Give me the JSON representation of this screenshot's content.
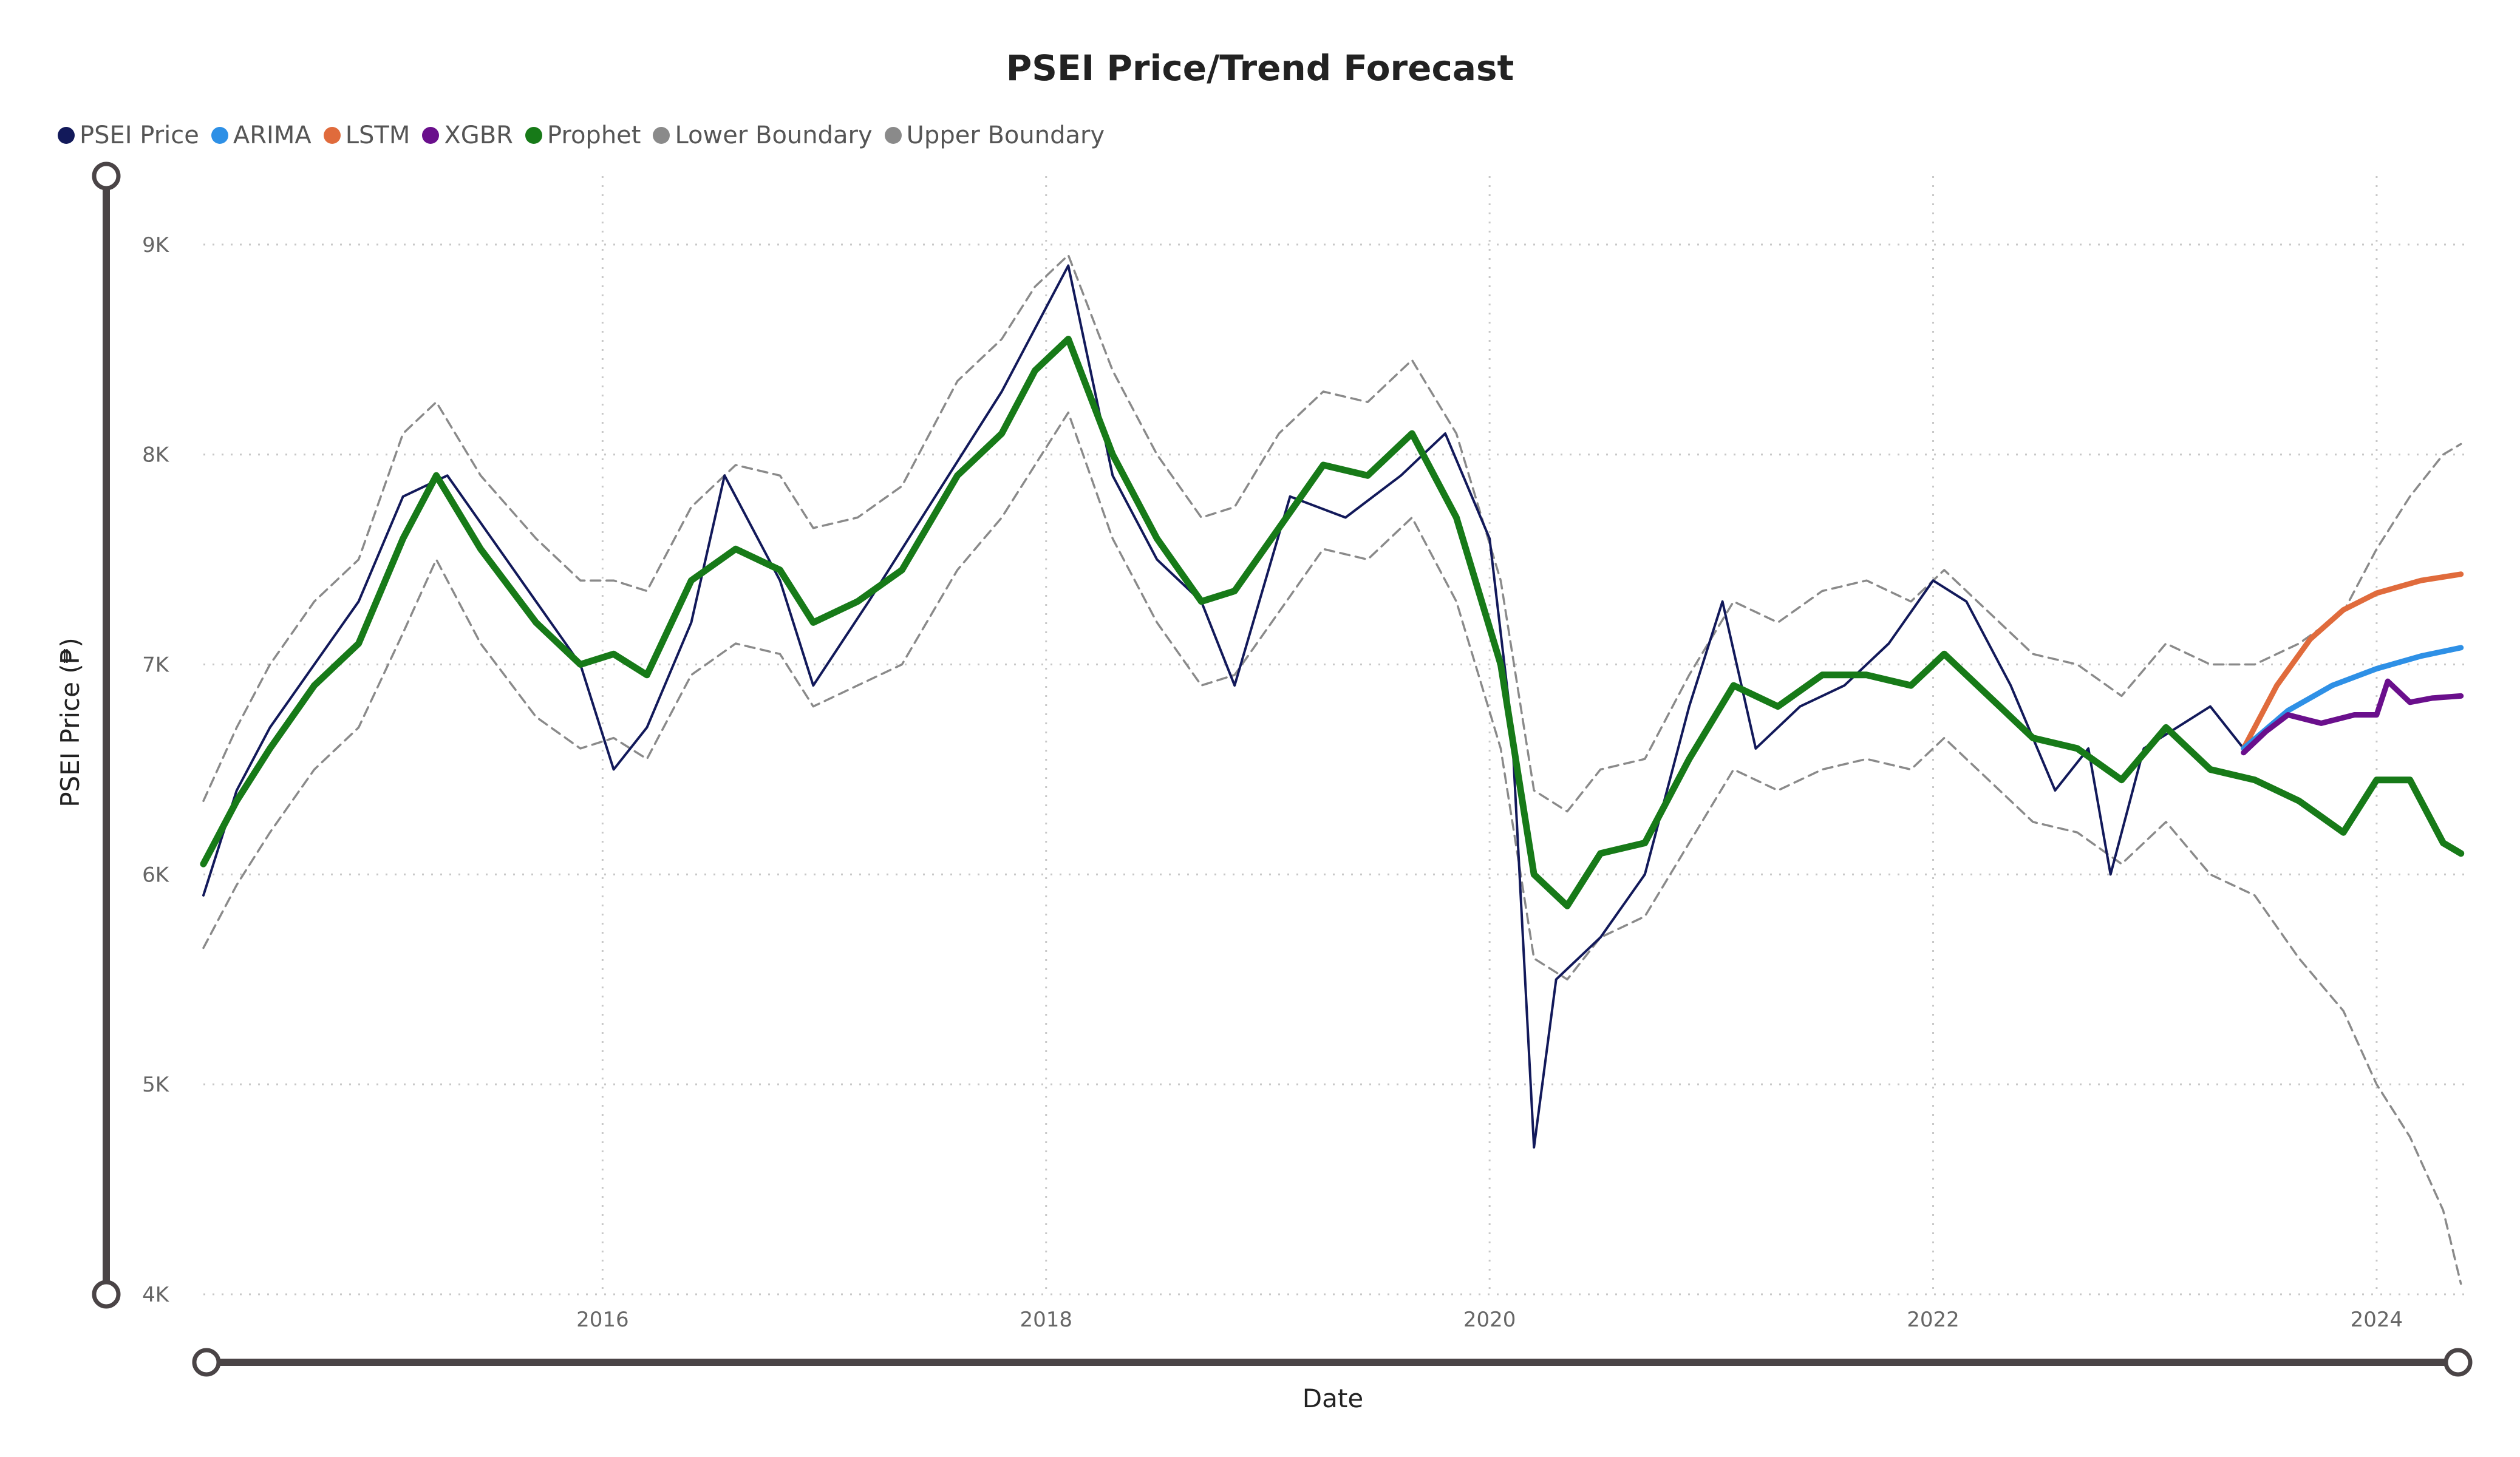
{
  "chart_data": {
    "type": "line",
    "title": "PSEI Price/Trend Forecast",
    "xlabel": "Date",
    "ylabel": "PSEI Price (₱)",
    "x_tick_labels": [
      "2016",
      "2018",
      "2020",
      "2022",
      "2024"
    ],
    "x_tick_values": [
      2016,
      2018,
      2020,
      2022,
      2024
    ],
    "y_tick_labels": [
      "4K",
      "5K",
      "6K",
      "7K",
      "8K",
      "9K"
    ],
    "y_tick_values": [
      4000,
      5000,
      6000,
      7000,
      8000,
      9000
    ],
    "xlim": [
      2014.2,
      2024.4
    ],
    "ylim": [
      4000,
      9500
    ],
    "grid": true,
    "legend_position": "top-left",
    "series": [
      {
        "name": "PSEI Price",
        "color": "#12195a",
        "x": [
          2014.2,
          2014.35,
          2014.5,
          2014.7,
          2014.9,
          2015.1,
          2015.3,
          2015.5,
          2015.7,
          2015.9,
          2016.05,
          2016.2,
          2016.4,
          2016.55,
          2016.8,
          2016.95,
          2017.2,
          2017.5,
          2017.8,
          2018.0,
          2018.1,
          2018.3,
          2018.5,
          2018.7,
          2018.85,
          2019.1,
          2019.35,
          2019.6,
          2019.8,
          2020.0,
          2020.1,
          2020.2,
          2020.3,
          2020.5,
          2020.7,
          2020.9,
          2021.05,
          2021.2,
          2021.4,
          2021.6,
          2021.8,
          2022.0,
          2022.15,
          2022.35,
          2022.55,
          2022.7,
          2022.8,
          2022.95,
          2023.1,
          2023.25,
          2023.4
        ],
        "values": [
          5900,
          6400,
          6700,
          7000,
          7300,
          7800,
          7900,
          7600,
          7300,
          7000,
          6500,
          6700,
          7200,
          7900,
          7400,
          6900,
          7300,
          7800,
          8300,
          8700,
          8900,
          7900,
          7500,
          7300,
          6900,
          7800,
          7700,
          7900,
          8100,
          7600,
          6700,
          4700,
          5500,
          5700,
          6000,
          6800,
          7300,
          6600,
          6800,
          6900,
          7100,
          7400,
          7300,
          6900,
          6400,
          6600,
          6000,
          6600,
          6700,
          6800,
          6600
        ]
      },
      {
        "name": "ARIMA",
        "color": "#2e90e6",
        "x": [
          2023.4,
          2023.6,
          2023.8,
          2024.0,
          2024.2,
          2024.38
        ],
        "values": [
          6600,
          6780,
          6900,
          6980,
          7040,
          7080
        ]
      },
      {
        "name": "LSTM",
        "color": "#e06b3c",
        "x": [
          2023.4,
          2023.55,
          2023.7,
          2023.85,
          2024.0,
          2024.2,
          2024.38
        ],
        "values": [
          6600,
          6900,
          7120,
          7260,
          7340,
          7400,
          7430
        ]
      },
      {
        "name": "XGBR",
        "color": "#6a0f8c",
        "x": [
          2023.4,
          2023.5,
          2023.6,
          2023.75,
          2023.9,
          2024.0,
          2024.05,
          2024.15,
          2024.25,
          2024.38
        ],
        "values": [
          6580,
          6680,
          6760,
          6720,
          6760,
          6760,
          6920,
          6820,
          6840,
          6850
        ]
      },
      {
        "name": "Prophet",
        "color": "#177a18",
        "x": [
          2014.2,
          2014.35,
          2014.5,
          2014.7,
          2014.9,
          2015.1,
          2015.25,
          2015.45,
          2015.7,
          2015.9,
          2016.05,
          2016.2,
          2016.4,
          2016.6,
          2016.8,
          2016.95,
          2017.15,
          2017.35,
          2017.6,
          2017.8,
          2017.95,
          2018.1,
          2018.3,
          2018.5,
          2018.7,
          2018.85,
          2019.05,
          2019.25,
          2019.45,
          2019.65,
          2019.85,
          2020.05,
          2020.2,
          2020.35,
          2020.5,
          2020.7,
          2020.9,
          2021.1,
          2021.3,
          2021.5,
          2021.7,
          2021.9,
          2022.05,
          2022.25,
          2022.45,
          2022.65,
          2022.85,
          2023.05,
          2023.25,
          2023.45,
          2023.65,
          2023.85,
          2024.0,
          2024.15,
          2024.3,
          2024.38
        ],
        "values": [
          6050,
          6350,
          6600,
          6900,
          7100,
          7600,
          7900,
          7550,
          7200,
          7000,
          7050,
          6950,
          7400,
          7550,
          7450,
          7200,
          7300,
          7450,
          7900,
          8100,
          8400,
          8550,
          8000,
          7600,
          7300,
          7350,
          7650,
          7950,
          7900,
          8100,
          7700,
          7000,
          6000,
          5850,
          6100,
          6150,
          6550,
          6900,
          6800,
          6950,
          6950,
          6900,
          7050,
          6850,
          6650,
          6600,
          6450,
          6700,
          6500,
          6450,
          6350,
          6200,
          6450,
          6450,
          6150,
          6100
        ]
      },
      {
        "name": "Lower Boundary",
        "color": "#8a8a8a",
        "x": [
          2014.2,
          2014.35,
          2014.5,
          2014.7,
          2014.9,
          2015.1,
          2015.25,
          2015.45,
          2015.7,
          2015.9,
          2016.05,
          2016.2,
          2016.4,
          2016.6,
          2016.8,
          2016.95,
          2017.15,
          2017.35,
          2017.6,
          2017.8,
          2017.95,
          2018.1,
          2018.3,
          2018.5,
          2018.7,
          2018.85,
          2019.05,
          2019.25,
          2019.45,
          2019.65,
          2019.85,
          2020.05,
          2020.2,
          2020.35,
          2020.5,
          2020.7,
          2020.9,
          2021.1,
          2021.3,
          2021.5,
          2021.7,
          2021.9,
          2022.05,
          2022.25,
          2022.45,
          2022.65,
          2022.85,
          2023.05,
          2023.25,
          2023.45,
          2023.65,
          2023.85,
          2024.0,
          2024.15,
          2024.3,
          2024.38
        ],
        "values": [
          5650,
          5950,
          6200,
          6500,
          6700,
          7150,
          7500,
          7100,
          6750,
          6600,
          6650,
          6550,
          6950,
          7100,
          7050,
          6800,
          6900,
          7000,
          7450,
          7700,
          7950,
          8200,
          7600,
          7200,
          6900,
          6950,
          7250,
          7550,
          7500,
          7700,
          7300,
          6600,
          5600,
          5500,
          5700,
          5800,
          6150,
          6500,
          6400,
          6500,
          6550,
          6500,
          6650,
          6450,
          6250,
          6200,
          6050,
          6250,
          6000,
          5900,
          5600,
          5350,
          5000,
          4750,
          4400,
          4050
        ]
      },
      {
        "name": "Upper Boundary",
        "color": "#8a8a8a",
        "x": [
          2014.2,
          2014.35,
          2014.5,
          2014.7,
          2014.9,
          2015.1,
          2015.25,
          2015.45,
          2015.7,
          2015.9,
          2016.05,
          2016.2,
          2016.4,
          2016.6,
          2016.8,
          2016.95,
          2017.15,
          2017.35,
          2017.6,
          2017.8,
          2017.95,
          2018.1,
          2018.3,
          2018.5,
          2018.7,
          2018.85,
          2019.05,
          2019.25,
          2019.45,
          2019.65,
          2019.85,
          2020.05,
          2020.2,
          2020.35,
          2020.5,
          2020.7,
          2020.9,
          2021.1,
          2021.3,
          2021.5,
          2021.7,
          2021.9,
          2022.05,
          2022.25,
          2022.45,
          2022.65,
          2022.85,
          2023.05,
          2023.25,
          2023.45,
          2023.65,
          2023.85,
          2024.0,
          2024.15,
          2024.3,
          2024.38
        ],
        "values": [
          6350,
          6700,
          7000,
          7300,
          7500,
          8100,
          8250,
          7900,
          7600,
          7400,
          7400,
          7350,
          7750,
          7950,
          7900,
          7650,
          7700,
          7850,
          8350,
          8550,
          8800,
          8950,
          8400,
          8000,
          7700,
          7750,
          8100,
          8300,
          8250,
          8450,
          8100,
          7400,
          6400,
          6300,
          6500,
          6550,
          6950,
          7300,
          7200,
          7350,
          7400,
          7300,
          7450,
          7250,
          7050,
          7000,
          6850,
          7100,
          7000,
          7000,
          7100,
          7250,
          7550,
          7800,
          8000,
          8050
        ]
      }
    ]
  }
}
